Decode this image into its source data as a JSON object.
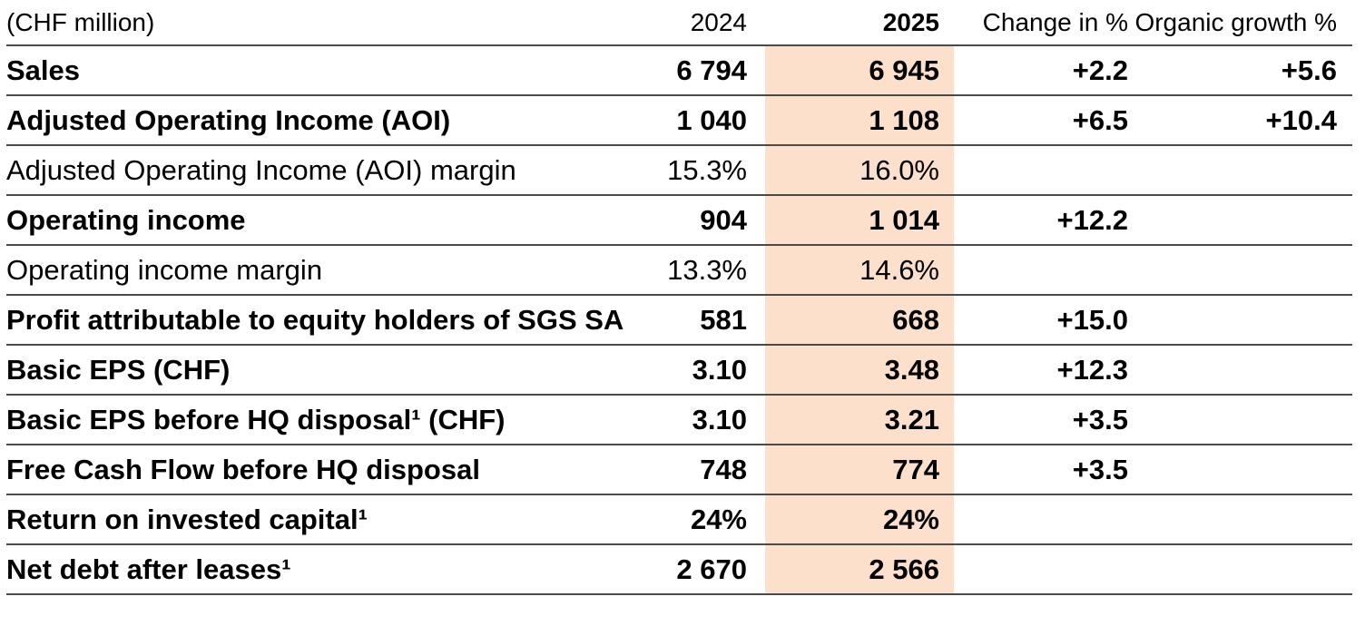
{
  "colors": {
    "highlight": "#fce0cc",
    "rule": "#4a4a4a",
    "text": "#000000"
  },
  "table": {
    "columns": {
      "label": "(CHF million)",
      "y2024": "2024",
      "y2025": "2025",
      "change": "Change in %",
      "organic": "Organic growth %"
    },
    "rows": [
      {
        "label": "Sales",
        "bold": true,
        "y2024": "6 794",
        "y2025": "6 945",
        "change": "+2.2",
        "organic": "+5.6"
      },
      {
        "label": "Adjusted Operating Income (AOI)",
        "bold": true,
        "y2024": "1 040",
        "y2025": "1 108",
        "change": "+6.5",
        "organic": "+10.4"
      },
      {
        "label": "Adjusted Operating Income (AOI) margin",
        "bold": false,
        "y2024": "15.3%",
        "y2025": "16.0%",
        "change": "",
        "organic": ""
      },
      {
        "label": "Operating income",
        "bold": true,
        "y2024": "904",
        "y2025": "1 014",
        "change": "+12.2",
        "organic": ""
      },
      {
        "label": "Operating income margin",
        "bold": false,
        "y2024": "13.3%",
        "y2025": "14.6%",
        "change": "",
        "organic": ""
      },
      {
        "label": "Profit attributable to equity holders of SGS SA",
        "bold": true,
        "y2024": "581",
        "y2025": "668",
        "change": "+15.0",
        "organic": ""
      },
      {
        "label": "Basic EPS (CHF)",
        "bold": true,
        "y2024": "3.10",
        "y2025": "3.48",
        "change": "+12.3",
        "organic": ""
      },
      {
        "label": "Basic EPS before HQ disposal¹ (CHF)",
        "bold": true,
        "y2024": "3.10",
        "y2025": "3.21",
        "change": "+3.5",
        "organic": ""
      },
      {
        "label": "Free Cash Flow before HQ disposal",
        "bold": true,
        "y2024": "748",
        "y2025": "774",
        "change": "+3.5",
        "organic": ""
      },
      {
        "label": "Return on invested capital¹",
        "bold": true,
        "y2024": "24%",
        "y2025": "24%",
        "change": "",
        "organic": ""
      },
      {
        "label": "Net debt after leases¹",
        "bold": true,
        "y2024": "2 670",
        "y2025": "2 566",
        "change": "",
        "organic": ""
      }
    ]
  }
}
